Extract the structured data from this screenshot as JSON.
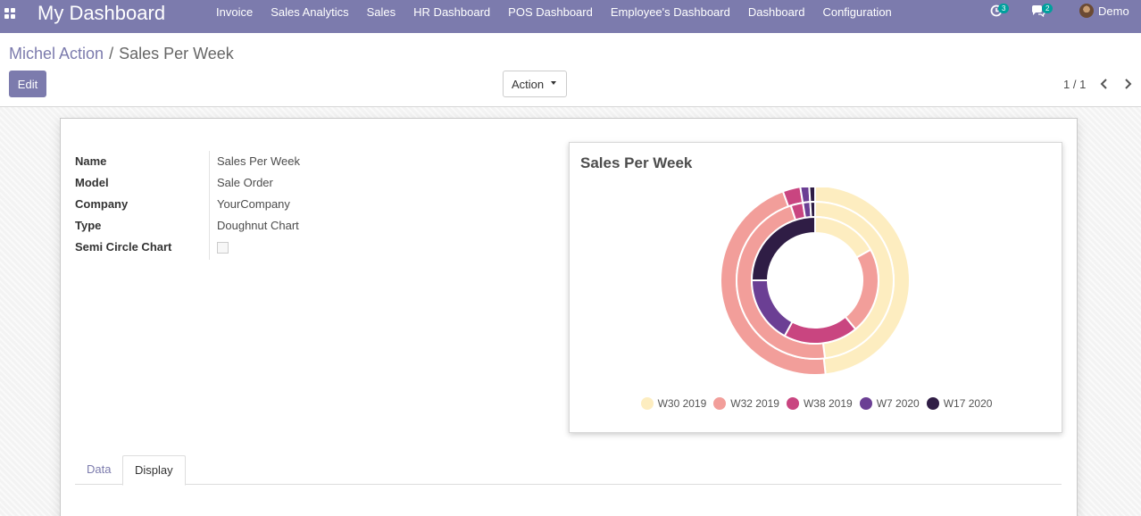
{
  "navbar": {
    "brand": "My Dashboard",
    "menu": [
      "Invoice",
      "Sales Analytics",
      "Sales",
      "HR Dashboard",
      "POS Dashboard",
      "Employee's Dashboard",
      "Dashboard",
      "Configuration"
    ],
    "activity_count": "3",
    "messages_count": "2",
    "user_name": "Demo"
  },
  "breadcrumb": {
    "parent": "Michel Action",
    "separator": "/",
    "current": "Sales Per Week"
  },
  "control_panel": {
    "edit_label": "Edit",
    "action_label": "Action",
    "pager": "1 / 1"
  },
  "form": {
    "fields": [
      {
        "label": "Name",
        "value": "Sales Per Week"
      },
      {
        "label": "Model",
        "value": "Sale Order"
      },
      {
        "label": "Company",
        "value": "YourCompany"
      },
      {
        "label": "Type",
        "value": "Doughnut Chart"
      }
    ],
    "semi_circle_label": "Semi Circle Chart",
    "semi_circle_checked": false,
    "tabs": [
      "Data",
      "Display"
    ],
    "active_tab": "Display"
  },
  "colors": {
    "navbar": "#7c7bad",
    "series": [
      "#fdedc0",
      "#f29e9a",
      "#c94580",
      "#6b3f94",
      "#2f1d45"
    ]
  },
  "chart_data": {
    "type": "doughnut",
    "title": "Sales Per Week",
    "categories": [
      "W30 2019",
      "W32 2019",
      "W38 2019",
      "W7 2020",
      "W17 2020"
    ],
    "series": [
      {
        "values": [
          48,
          46,
          3,
          1.5,
          1
        ]
      },
      {
        "values": [
          48,
          47,
          2.5,
          1.5,
          1
        ]
      },
      {
        "values": [
          17,
          22,
          19,
          17,
          25
        ]
      }
    ],
    "legend": "bottom"
  }
}
